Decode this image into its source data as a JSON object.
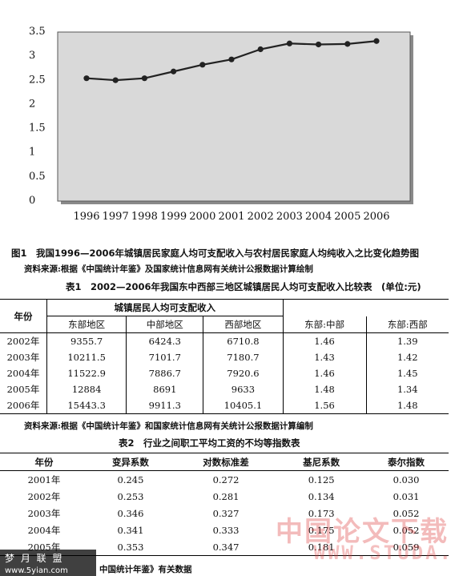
{
  "chart_data": {
    "type": "line",
    "x": [
      "1996",
      "1997",
      "1998",
      "1999",
      "2000",
      "2001",
      "2002",
      "2003",
      "2004",
      "2005",
      "2006"
    ],
    "values": [
      2.51,
      2.47,
      2.51,
      2.65,
      2.79,
      2.9,
      3.11,
      3.23,
      3.21,
      3.22,
      3.28
    ],
    "y_ticks": [
      "3.5",
      "3",
      "2.5",
      "2",
      "1.5",
      "1",
      "0.5",
      "0"
    ],
    "ylim": [
      0,
      3.5
    ],
    "line_color": "#222222",
    "plot_bg": "#d9d9d9"
  },
  "figure": {
    "caption": "图1　我国1996—2006年城镇居民家庭人均可支配收入与农村居民家庭人均纯收入之比变化趋势图",
    "source": "资料来源:根据《中国统计年鉴》及国家统计信息网有关统计公报数据计算绘制"
  },
  "table1": {
    "title": "表1　2002—2006年我国东中西部三地区城镇居民人均可支配收入比较表　(单位:元)",
    "year_header": "年份",
    "group_header": "城镇居民人均可支配收入",
    "columns": [
      "东部地区",
      "中部地区",
      "西部地区",
      "东部:中部",
      "东部:西部"
    ],
    "rows": [
      [
        "2002年",
        "9355.7",
        "6424.3",
        "6710.8",
        "1.46",
        "1.39"
      ],
      [
        "2003年",
        "10211.5",
        "7101.7",
        "7180.7",
        "1.43",
        "1.42"
      ],
      [
        "2004年",
        "11522.9",
        "7886.7",
        "7920.6",
        "1.46",
        "1.45"
      ],
      [
        "2005年",
        "12884",
        "8691",
        "9633",
        "1.48",
        "1.34"
      ],
      [
        "2006年",
        "15443.3",
        "9911.3",
        "10405.1",
        "1.56",
        "1.48"
      ]
    ],
    "source": "资料来源:根据《中国统计年鉴》和国家统计信息网有关统计公报数据计算编制"
  },
  "table2": {
    "title": "表2　行业之间职工平均工资的不均等指数表",
    "columns": [
      "年份",
      "变异系数",
      "对数标准差",
      "基尼系数",
      "泰尔指数"
    ],
    "rows": [
      [
        "2001年",
        "0.245",
        "0.272",
        "0.125",
        "0.030"
      ],
      [
        "2002年",
        "0.253",
        "0.281",
        "0.134",
        "0.031"
      ],
      [
        "2003年",
        "0.346",
        "0.327",
        "0.173",
        "0.052"
      ],
      [
        "2004年",
        "0.341",
        "0.333",
        "0.175",
        "0.052"
      ],
      [
        "2005年",
        "0.353",
        "0.347",
        "0.181",
        "0.059"
      ]
    ],
    "source_fragment": "中国统计年鉴》有关数据"
  },
  "watermarks": {
    "red_cn": "中国论文下载",
    "red_url": "WWW.STUDA.",
    "corner_line1": "梦 月 联 盟",
    "corner_line2": "www.5yian.com"
  }
}
